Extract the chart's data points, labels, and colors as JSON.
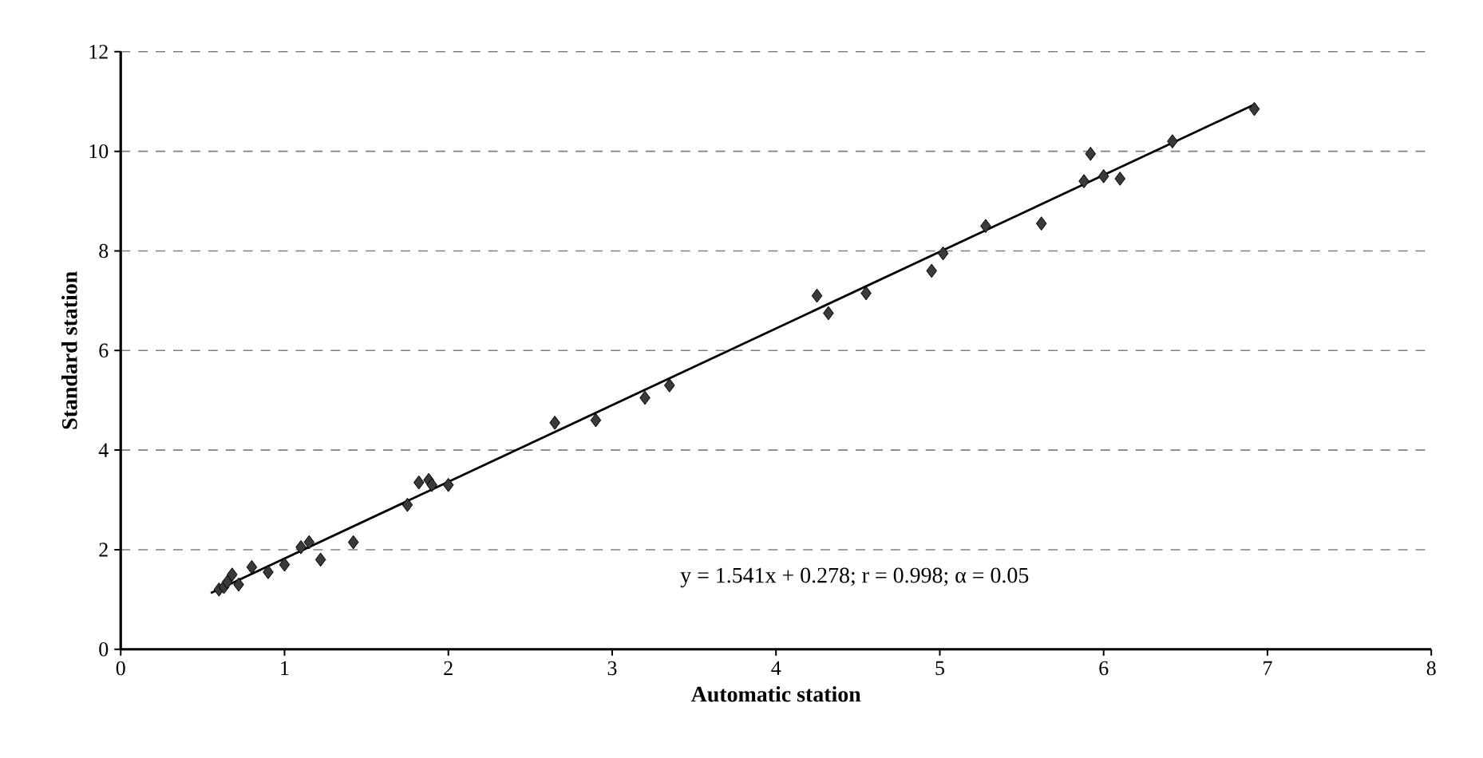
{
  "chart_data": {
    "type": "scatter",
    "xlabel": "Automatic station",
    "ylabel": "Standard station",
    "xlim": [
      0,
      8
    ],
    "xticks": [
      0,
      1,
      2,
      3,
      4,
      5,
      6,
      7,
      8
    ],
    "ylim": [
      0,
      12
    ],
    "yticks": [
      0,
      2,
      4,
      6,
      8,
      10,
      12
    ],
    "grid": "y",
    "marker": "diamond",
    "annotations": [
      "y = 1.541x + 0.278; r = 0.998; α = 0.05"
    ],
    "series": [
      {
        "color": "#3a3a3a",
        "x": [
          0.6,
          0.63,
          0.65,
          0.68,
          0.72,
          0.8,
          0.9,
          1.0,
          1.1,
          1.15,
          1.22,
          1.42,
          1.75,
          1.82,
          1.88,
          1.9,
          2.0,
          2.65,
          2.9,
          3.2,
          3.35,
          4.25,
          4.32,
          4.55,
          4.95,
          5.02,
          5.28,
          5.62,
          5.88,
          5.92,
          6.0,
          6.1,
          6.42,
          6.92
        ],
        "values": [
          1.2,
          1.25,
          1.35,
          1.5,
          1.3,
          1.65,
          1.55,
          1.7,
          2.05,
          2.15,
          1.8,
          2.15,
          2.9,
          3.35,
          3.4,
          3.3,
          3.3,
          4.55,
          4.6,
          5.05,
          5.3,
          7.1,
          6.75,
          7.15,
          7.6,
          7.95,
          8.5,
          8.55,
          9.4,
          9.95,
          9.5,
          9.45,
          10.2,
          10.85
        ]
      },
      {
        "type": "line",
        "color": "#000000",
        "marker": "none",
        "x": [
          0.55,
          6.92
        ],
        "values": [
          1.13,
          10.94
        ]
      }
    ]
  }
}
